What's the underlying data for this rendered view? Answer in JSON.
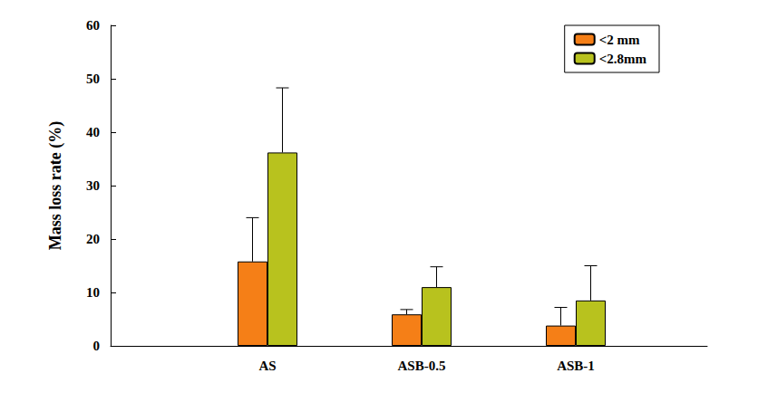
{
  "chart_data": {
    "type": "bar",
    "y_label": "Mass loss rate (%)",
    "categories": [
      "AS",
      "ASB-0.5",
      "ASB-1"
    ],
    "series": [
      {
        "name": "<2 mm",
        "color": "#f57f17",
        "values": [
          15.8,
          5.9,
          3.8
        ],
        "errors": [
          8.2,
          0.9,
          3.4
        ]
      },
      {
        "name": "<2.8mm",
        "color": "#b8c21e",
        "values": [
          36.2,
          11.0,
          8.5
        ],
        "errors": [
          12.1,
          3.8,
          6.5
        ]
      }
    ],
    "ylim": [
      0,
      60
    ],
    "yticks": [
      0,
      10,
      20,
      30,
      40,
      50,
      60
    ],
    "grid": false,
    "legend": "upper right"
  }
}
